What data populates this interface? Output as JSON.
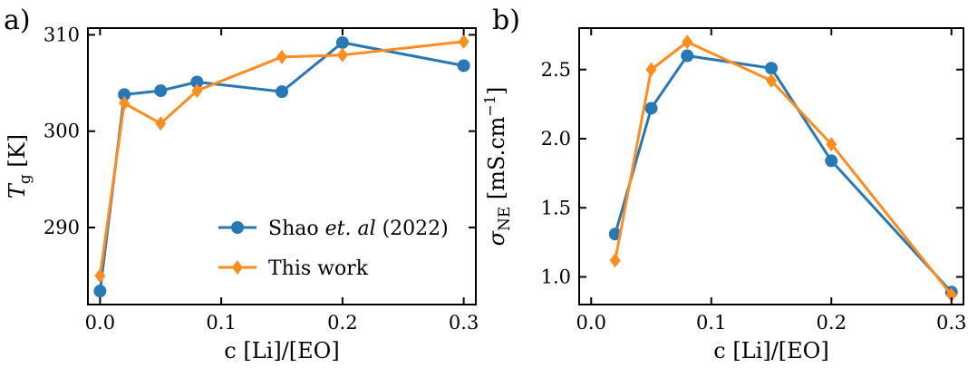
{
  "figure": {
    "panels": [
      "a)",
      "b)"
    ]
  },
  "colors": {
    "shao": "#2878b5",
    "this_work": "#fd8d1c"
  },
  "chart_data": [
    {
      "type": "line",
      "panel": "a)",
      "xlabel": "c [Li]/[EO]",
      "ylabel_main": "T",
      "ylabel_sub": "g",
      "ylabel_unit": " [K]",
      "xlim": [
        -0.01,
        0.31
      ],
      "ylim": [
        282,
        310.7
      ],
      "xticks": [
        0.0,
        0.1,
        0.2,
        0.3
      ],
      "xtick_labels": [
        "0.0",
        "0.1",
        "0.2",
        "0.3"
      ],
      "yticks": [
        290,
        300,
        310
      ],
      "ytick_labels": [
        "290",
        "300",
        "310"
      ],
      "grid": false,
      "legend_placement": "lower-right",
      "series": [
        {
          "name": "Shao et. al (2022)",
          "marker": "circle",
          "x": [
            0.0,
            0.02,
            0.05,
            0.08,
            0.15,
            0.2,
            0.3
          ],
          "y": [
            283.4,
            303.8,
            304.2,
            305.1,
            304.1,
            309.2,
            306.8
          ]
        },
        {
          "name": "This work",
          "marker": "diamond",
          "x": [
            0.0,
            0.02,
            0.05,
            0.08,
            0.15,
            0.2,
            0.3
          ],
          "y": [
            285.0,
            302.9,
            300.8,
            304.2,
            307.7,
            307.9,
            309.3
          ]
        }
      ],
      "legend": {
        "shao_prefix": "Shao ",
        "shao_italic": "et. al",
        "shao_suffix": " (2022)",
        "this_work": "This work"
      }
    },
    {
      "type": "line",
      "panel": "b)",
      "xlabel": "c [Li]/[EO]",
      "ylabel_main": "σ",
      "ylabel_sub": "NE",
      "ylabel_unit": " [mS.cm",
      "ylabel_sup": "−1",
      "ylabel_close": "]",
      "xlim": [
        -0.01,
        0.31
      ],
      "ylim": [
        0.8,
        2.8
      ],
      "xticks": [
        0.0,
        0.1,
        0.2,
        0.3
      ],
      "xtick_labels": [
        "0.0",
        "0.1",
        "0.2",
        "0.3"
      ],
      "yticks": [
        1.0,
        1.5,
        2.0,
        2.5
      ],
      "ytick_labels": [
        "1.0",
        "1.5",
        "2.0",
        "2.5"
      ],
      "grid": false,
      "series": [
        {
          "name": "Shao et. al (2022)",
          "marker": "circle",
          "x": [
            0.02,
            0.05,
            0.08,
            0.15,
            0.2,
            0.3
          ],
          "y": [
            1.31,
            2.22,
            2.6,
            2.51,
            1.84,
            0.89
          ]
        },
        {
          "name": "This work",
          "marker": "diamond",
          "x": [
            0.02,
            0.05,
            0.08,
            0.15,
            0.2,
            0.3
          ],
          "y": [
            1.12,
            2.5,
            2.7,
            2.42,
            1.96,
            0.87
          ]
        }
      ]
    }
  ]
}
